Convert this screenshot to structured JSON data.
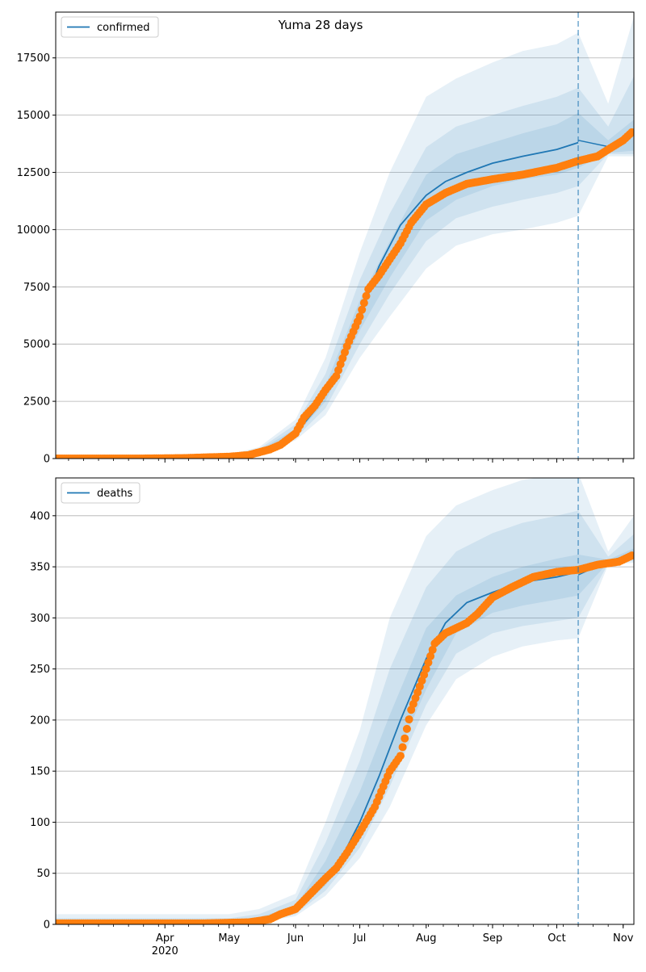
{
  "figure_title": "Yuma 28 days",
  "colors": {
    "model": "#1f77b4",
    "observed": "#ff7f0e",
    "band": "#1f77b4",
    "grid": "#b0b0b0",
    "forecast_line": "#1f77b4"
  },
  "x_axis": {
    "range": [
      "2020-02-10",
      "2020-11-06"
    ],
    "major_ticks": [
      {
        "date": "2020-04-01",
        "label": "Apr",
        "sublabel": "2020"
      },
      {
        "date": "2020-05-01",
        "label": "May",
        "sublabel": ""
      },
      {
        "date": "2020-06-01",
        "label": "Jun",
        "sublabel": ""
      },
      {
        "date": "2020-07-01",
        "label": "Jul",
        "sublabel": ""
      },
      {
        "date": "2020-08-01",
        "label": "Aug",
        "sublabel": ""
      },
      {
        "date": "2020-09-01",
        "label": "Sep",
        "sublabel": ""
      },
      {
        "date": "2020-10-01",
        "label": "Oct",
        "sublabel": ""
      },
      {
        "date": "2020-11-01",
        "label": "Nov",
        "sublabel": ""
      }
    ],
    "forecast_date": "2020-10-11"
  },
  "chart_data": [
    {
      "type": "line",
      "legend": "confirmed",
      "ylim": [
        0,
        19500
      ],
      "yticks": [
        0,
        2500,
        5000,
        7500,
        10000,
        12500,
        15000,
        17500
      ],
      "grid": "horizontal",
      "legend_position": "top-left",
      "model_fit": {
        "dates": [
          "2020-02-10",
          "2020-03-15",
          "2020-04-15",
          "2020-05-01",
          "2020-05-15",
          "2020-05-25",
          "2020-06-01",
          "2020-06-10",
          "2020-06-20",
          "2020-07-01",
          "2020-07-10",
          "2020-07-20",
          "2020-08-01",
          "2020-08-10",
          "2020-08-20",
          "2020-09-01",
          "2020-09-15",
          "2020-10-01",
          "2020-10-11"
        ],
        "values": [
          0,
          0,
          20,
          100,
          300,
          650,
          1100,
          2100,
          3700,
          6200,
          8400,
          10200,
          11500,
          12100,
          12500,
          12900,
          13200,
          13500,
          13800
        ]
      },
      "bands": [
        {
          "dates": [
            "2020-02-10",
            "2020-05-01",
            "2020-05-15",
            "2020-06-01",
            "2020-06-15",
            "2020-07-01",
            "2020-07-15",
            "2020-08-01",
            "2020-08-15",
            "2020-09-01",
            "2020-09-15",
            "2020-10-01",
            "2020-10-11",
            "2020-10-25",
            "2020-11-06"
          ],
          "lower": [
            0,
            50,
            200,
            800,
            1900,
            4400,
            6200,
            8300,
            9300,
            9800,
            10000,
            10300,
            10600,
            13200,
            13200
          ],
          "upper": [
            100,
            180,
            500,
            1700,
            4400,
            9000,
            12500,
            15800,
            16600,
            17300,
            17800,
            18100,
            18600,
            15500,
            19300
          ]
        },
        {
          "dates": [
            "2020-02-10",
            "2020-05-01",
            "2020-05-15",
            "2020-06-01",
            "2020-06-15",
            "2020-07-01",
            "2020-07-15",
            "2020-08-01",
            "2020-08-15",
            "2020-09-01",
            "2020-09-15",
            "2020-10-01",
            "2020-10-11",
            "2020-10-25",
            "2020-11-06"
          ],
          "lower": [
            0,
            60,
            220,
            900,
            2200,
            5000,
            7200,
            9500,
            10500,
            11000,
            11300,
            11600,
            11900,
            13300,
            13300
          ],
          "upper": [
            50,
            150,
            420,
            1500,
            3700,
            7800,
            10700,
            13600,
            14500,
            15000,
            15400,
            15800,
            16200,
            14500,
            16700
          ]
        },
        {
          "dates": [
            "2020-02-10",
            "2020-05-01",
            "2020-05-15",
            "2020-06-01",
            "2020-06-15",
            "2020-07-01",
            "2020-07-15",
            "2020-08-01",
            "2020-08-15",
            "2020-09-01",
            "2020-09-15",
            "2020-10-01",
            "2020-10-11",
            "2020-10-25",
            "2020-11-06"
          ],
          "lower": [
            0,
            70,
            250,
            1000,
            2500,
            5600,
            7900,
            10400,
            11300,
            11900,
            12200,
            12400,
            12700,
            13350,
            13450
          ],
          "upper": [
            20,
            130,
            360,
            1300,
            3200,
            6900,
            9500,
            12400,
            13300,
            13800,
            14200,
            14600,
            15100,
            13900,
            14800
          ]
        }
      ],
      "observed": {
        "dates": [
          "2020-02-10",
          "2020-03-01",
          "2020-03-20",
          "2020-04-10",
          "2020-04-20",
          "2020-05-01",
          "2020-05-10",
          "2020-05-20",
          "2020-05-25",
          "2020-06-01",
          "2020-06-05",
          "2020-06-10",
          "2020-06-15",
          "2020-06-20",
          "2020-06-25",
          "2020-07-01",
          "2020-07-05",
          "2020-07-10",
          "2020-07-15",
          "2020-07-20",
          "2020-07-25",
          "2020-08-01",
          "2020-08-10",
          "2020-08-20",
          "2020-09-01",
          "2020-09-15",
          "2020-10-01",
          "2020-10-11",
          "2020-10-20",
          "2020-10-25",
          "2020-11-01",
          "2020-11-05"
        ],
        "values": [
          0,
          0,
          0,
          20,
          50,
          80,
          150,
          400,
          600,
          1100,
          1800,
          2300,
          3000,
          3600,
          4900,
          6200,
          7400,
          8000,
          8700,
          9400,
          10300,
          11100,
          11600,
          12000,
          12200,
          12400,
          12700,
          13000,
          13200,
          13500,
          13900,
          14250
        ]
      }
    },
    {
      "type": "line",
      "legend": "deaths",
      "ylim": [
        0,
        437
      ],
      "yticks": [
        0,
        50,
        100,
        150,
        200,
        250,
        300,
        350,
        400
      ],
      "grid": "horizontal",
      "legend_position": "top-left",
      "model_fit": {
        "dates": [
          "2020-02-10",
          "2020-05-01",
          "2020-05-15",
          "2020-05-25",
          "2020-06-01",
          "2020-06-10",
          "2020-06-20",
          "2020-07-01",
          "2020-07-10",
          "2020-07-20",
          "2020-08-01",
          "2020-08-10",
          "2020-08-20",
          "2020-09-01",
          "2020-09-15",
          "2020-10-01",
          "2020-10-11"
        ],
        "values": [
          0,
          1,
          3,
          8,
          15,
          30,
          55,
          100,
          145,
          200,
          260,
          295,
          315,
          325,
          335,
          340,
          345
        ]
      },
      "bands": [
        {
          "dates": [
            "2020-02-10",
            "2020-05-01",
            "2020-05-15",
            "2020-06-01",
            "2020-06-15",
            "2020-07-01",
            "2020-07-15",
            "2020-08-01",
            "2020-08-15",
            "2020-09-01",
            "2020-09-15",
            "2020-10-01",
            "2020-10-11",
            "2020-10-25",
            "2020-11-06"
          ],
          "lower": [
            0,
            0,
            2,
            8,
            28,
            65,
            115,
            195,
            240,
            262,
            272,
            278,
            280,
            352,
            354
          ],
          "upper": [
            10,
            10,
            15,
            30,
            100,
            190,
            300,
            380,
            410,
            425,
            435,
            440,
            442,
            365,
            400
          ]
        },
        {
          "dates": [
            "2020-02-10",
            "2020-05-01",
            "2020-05-15",
            "2020-06-01",
            "2020-06-15",
            "2020-07-01",
            "2020-07-15",
            "2020-08-01",
            "2020-08-15",
            "2020-09-01",
            "2020-09-15",
            "2020-10-01",
            "2020-10-11",
            "2020-10-25",
            "2020-11-06"
          ],
          "lower": [
            0,
            0,
            3,
            10,
            33,
            75,
            135,
            215,
            265,
            285,
            292,
            297,
            300,
            353,
            356
          ],
          "upper": [
            6,
            6,
            10,
            24,
            80,
            160,
            250,
            330,
            365,
            383,
            393,
            400,
            405,
            360,
            382
          ]
        },
        {
          "dates": [
            "2020-02-10",
            "2020-05-01",
            "2020-05-15",
            "2020-06-01",
            "2020-06-15",
            "2020-07-01",
            "2020-07-15",
            "2020-08-01",
            "2020-08-15",
            "2020-09-01",
            "2020-09-15",
            "2020-10-01",
            "2020-10-11",
            "2020-10-25",
            "2020-11-06"
          ],
          "lower": [
            0,
            0,
            4,
            12,
            38,
            85,
            150,
            230,
            285,
            305,
            312,
            318,
            322,
            354,
            358
          ],
          "upper": [
            3,
            3,
            7,
            18,
            62,
            130,
            205,
            290,
            322,
            340,
            350,
            358,
            362,
            357,
            368
          ]
        }
      ],
      "observed": {
        "dates": [
          "2020-02-10",
          "2020-04-20",
          "2020-05-10",
          "2020-05-20",
          "2020-05-25",
          "2020-06-01",
          "2020-06-08",
          "2020-06-15",
          "2020-06-20",
          "2020-06-25",
          "2020-07-01",
          "2020-07-08",
          "2020-07-15",
          "2020-07-20",
          "2020-07-22",
          "2020-07-25",
          "2020-08-01",
          "2020-08-05",
          "2020-08-10",
          "2020-08-20",
          "2020-08-25",
          "2020-09-01",
          "2020-09-10",
          "2020-09-20",
          "2020-10-01",
          "2020-10-11",
          "2020-10-20",
          "2020-10-30",
          "2020-11-05"
        ],
        "values": [
          1,
          1,
          2,
          5,
          10,
          15,
          30,
          45,
          55,
          70,
          90,
          115,
          150,
          165,
          182,
          210,
          250,
          275,
          285,
          295,
          304,
          320,
          330,
          340,
          345,
          347,
          352,
          355,
          361
        ]
      }
    }
  ]
}
